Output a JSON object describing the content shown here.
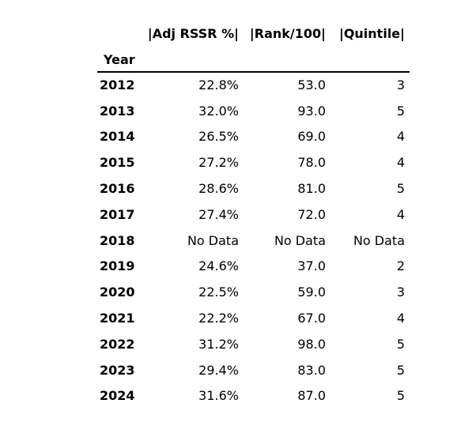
{
  "table": {
    "columns": [
      "|Adj RSSR %|",
      "|Rank/100|",
      "|Quintile|"
    ],
    "index_name": "Year",
    "rows": [
      {
        "year": "2012",
        "values": [
          "22.8%",
          "53.0",
          "3"
        ]
      },
      {
        "year": "2013",
        "values": [
          "32.0%",
          "93.0",
          "5"
        ]
      },
      {
        "year": "2014",
        "values": [
          "26.5%",
          "69.0",
          "4"
        ]
      },
      {
        "year": "2015",
        "values": [
          "27.2%",
          "78.0",
          "4"
        ]
      },
      {
        "year": "2016",
        "values": [
          "28.6%",
          "81.0",
          "5"
        ]
      },
      {
        "year": "2017",
        "values": [
          "27.4%",
          "72.0",
          "4"
        ]
      },
      {
        "year": "2018",
        "values": [
          "No Data",
          "No Data",
          "No Data"
        ]
      },
      {
        "year": "2019",
        "values": [
          "24.6%",
          "37.0",
          "2"
        ]
      },
      {
        "year": "2020",
        "values": [
          "22.5%",
          "59.0",
          "3"
        ]
      },
      {
        "year": "2021",
        "values": [
          "22.2%",
          "67.0",
          "4"
        ]
      },
      {
        "year": "2022",
        "values": [
          "31.2%",
          "98.0",
          "5"
        ]
      },
      {
        "year": "2023",
        "values": [
          "29.4%",
          "83.0",
          "5"
        ]
      },
      {
        "year": "2024",
        "values": [
          "31.6%",
          "87.0",
          "5"
        ]
      }
    ]
  }
}
